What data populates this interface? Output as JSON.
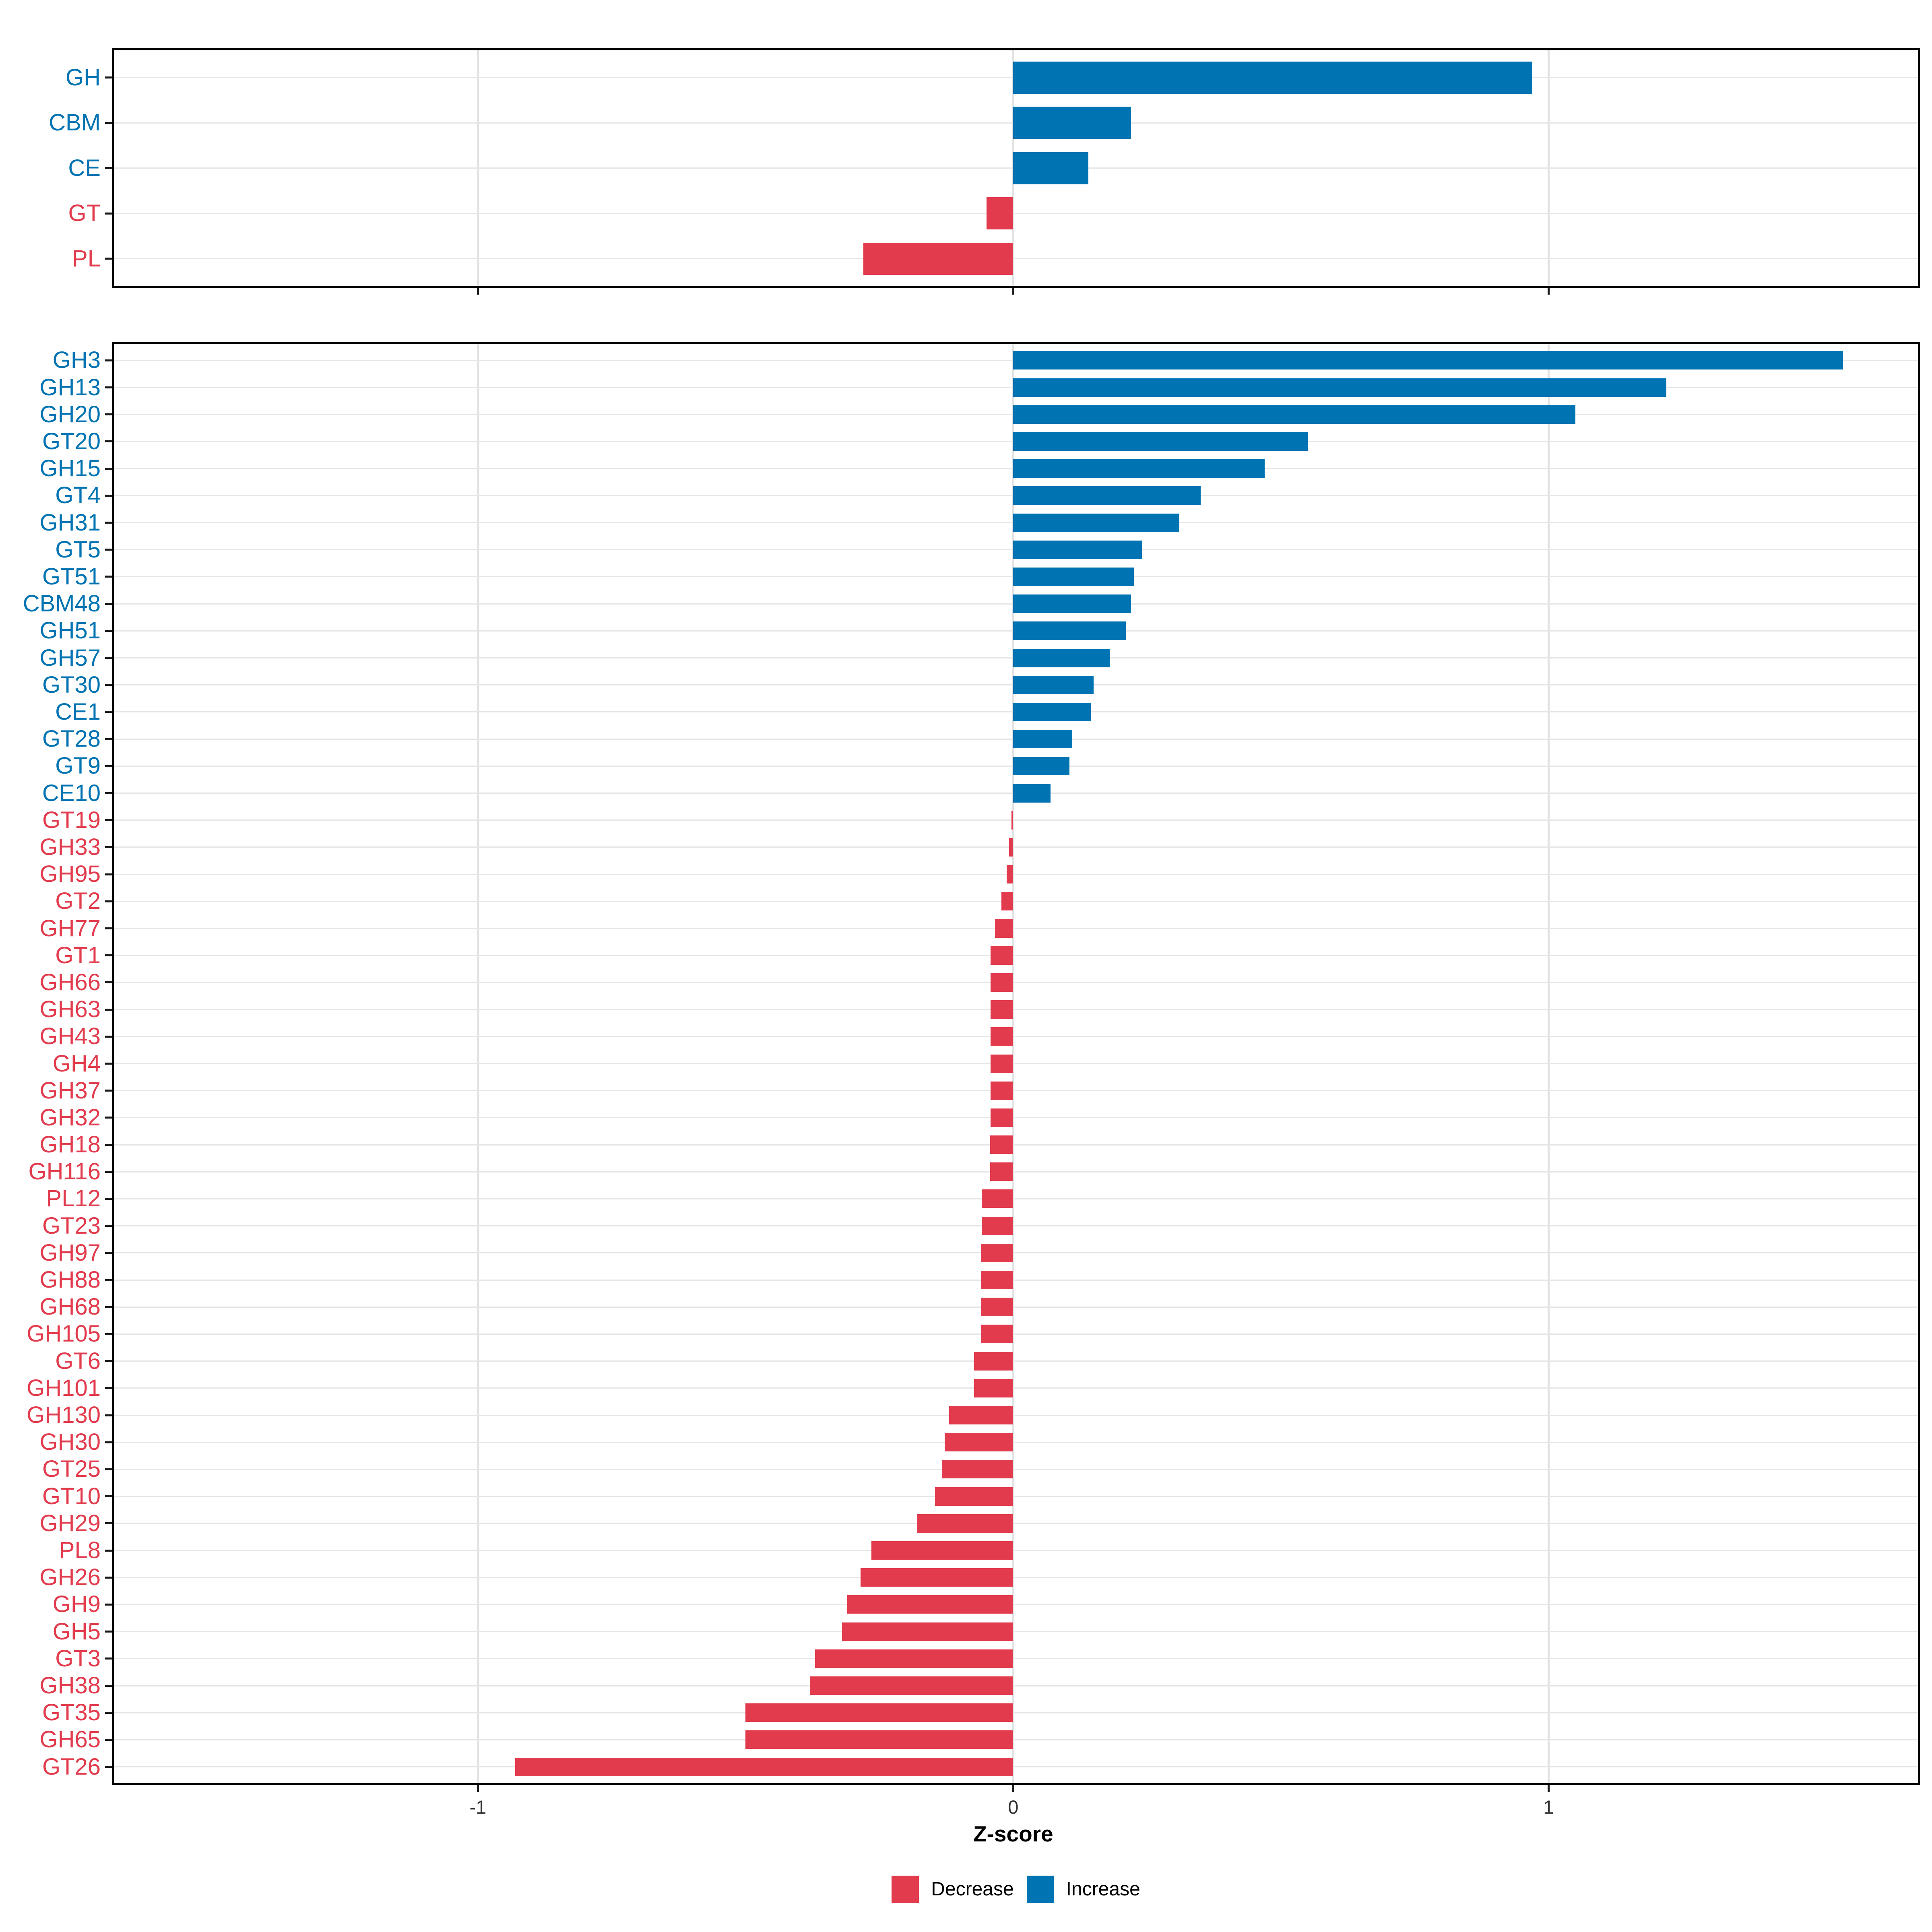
{
  "chart_data": [
    {
      "id": "family_panel",
      "type": "bar",
      "orientation": "horizontal",
      "categories": [
        "GH",
        "CBM",
        "CE",
        "GT",
        "PL"
      ],
      "values": [
        0.97,
        0.22,
        0.14,
        -0.05,
        -0.28
      ],
      "xlim": [
        -1.68,
        1.69
      ],
      "x_ticks": [
        -1,
        0,
        1
      ],
      "grid": true,
      "legend_position": "none"
    },
    {
      "id": "subfamily_panel",
      "type": "bar",
      "orientation": "horizontal",
      "categories": [
        "GH3",
        "GH13",
        "GH20",
        "GT20",
        "GH15",
        "GT4",
        "GH31",
        "GT5",
        "GT51",
        "CBM48",
        "GH51",
        "GH57",
        "GT30",
        "CE1",
        "GT28",
        "GT9",
        "CE10",
        "GT19",
        "GH33",
        "GH95",
        "GT2",
        "GH77",
        "GT1",
        "GH66",
        "GH63",
        "GH43",
        "GH4",
        "GH37",
        "GH32",
        "GH18",
        "GH116",
        "PL12",
        "GT23",
        "GH97",
        "GH88",
        "GH68",
        "GH105",
        "GT6",
        "GH101",
        "GH130",
        "GH30",
        "GT25",
        "GT10",
        "GH29",
        "PL8",
        "GH26",
        "GH9",
        "GH5",
        "GT3",
        "GH38",
        "GT35",
        "GH65",
        "GT26"
      ],
      "values": [
        1.55,
        1.22,
        1.05,
        0.55,
        0.47,
        0.35,
        0.31,
        0.24,
        0.225,
        0.22,
        0.21,
        0.18,
        0.15,
        0.145,
        0.11,
        0.105,
        0.07,
        -0.003,
        -0.008,
        -0.012,
        -0.022,
        -0.034,
        -0.042,
        -0.042,
        -0.042,
        -0.042,
        -0.042,
        -0.042,
        -0.042,
        -0.043,
        -0.043,
        -0.059,
        -0.059,
        -0.06,
        -0.06,
        -0.06,
        -0.06,
        -0.073,
        -0.073,
        -0.12,
        -0.128,
        -0.133,
        -0.146,
        -0.18,
        -0.265,
        -0.285,
        -0.31,
        -0.32,
        -0.37,
        -0.38,
        -0.5,
        -0.5,
        -0.93
      ],
      "xlim": [
        -1.68,
        1.69
      ],
      "x_ticks": [
        -1,
        0,
        1
      ],
      "grid": true,
      "legend_position": "bottom"
    }
  ],
  "axis": {
    "xlabel": "Z-score",
    "x_tick_labels": [
      "-1",
      "0",
      "1"
    ]
  },
  "legend": {
    "items": [
      {
        "label": "Decrease",
        "color": "#E23B4D"
      },
      {
        "label": "Increase",
        "color": "#0073B2"
      }
    ]
  },
  "colors": {
    "increase": "#0073B2",
    "decrease": "#E23B4D",
    "grid": "#E2E2E2",
    "panel_border": "#000000",
    "background": "#FFFFFF",
    "axis_text": "#303030"
  }
}
